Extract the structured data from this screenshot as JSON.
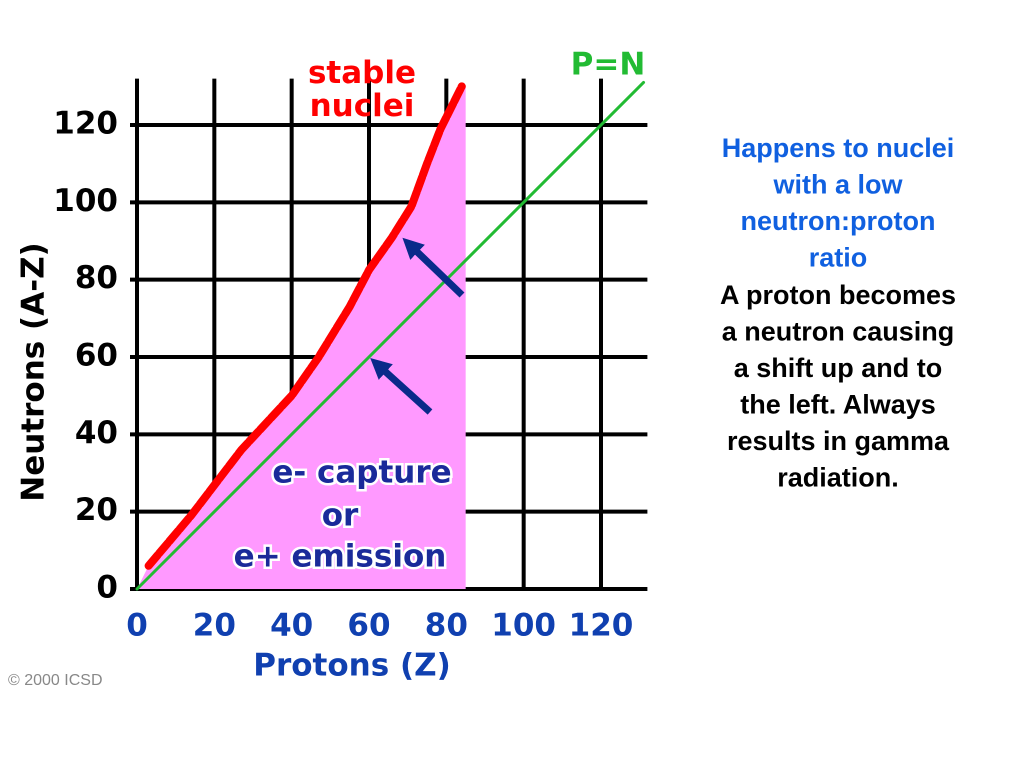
{
  "chart_data": {
    "type": "line",
    "xlabel": "Protons  (Z)",
    "ylabel": "Neutrons  (A-Z)",
    "xlim": [
      0,
      132
    ],
    "ylim": [
      0,
      132
    ],
    "xticks": [
      0,
      20,
      40,
      60,
      80,
      100,
      120
    ],
    "yticks": [
      0,
      20,
      40,
      60,
      80,
      100,
      120
    ],
    "grid": true,
    "series": [
      {
        "name": "stable nuclei",
        "color": "#ff0000",
        "x": [
          3,
          14,
          27,
          40,
          47,
          55,
          60,
          66,
          71,
          75,
          78.5,
          84
        ],
        "values": [
          6,
          19,
          36,
          50,
          60,
          73,
          82.5,
          91,
          99,
          110,
          119,
          130
        ]
      },
      {
        "name": "P=N",
        "color": "#22bb33",
        "x": [
          0,
          131
        ],
        "values": [
          0,
          131
        ]
      }
    ],
    "shaded_region": {
      "color": "#ff99ff",
      "x": [
        0,
        3,
        14,
        27,
        40,
        47,
        55,
        60,
        66,
        71,
        75,
        78.5,
        84,
        85,
        85
      ],
      "values": [
        0,
        6,
        19,
        36,
        50,
        60,
        73,
        82.5,
        91,
        99,
        110,
        119,
        130,
        130,
        0
      ]
    },
    "annotations": [
      "e- capture",
      "or",
      "e+ emission"
    ],
    "copyright": "© 2000 ICSD"
  },
  "note": {
    "title_lines": [
      "Happens to nuclei",
      "with a low",
      "neutron:proton",
      "ratio"
    ],
    "body_lines": [
      "A proton becomes",
      "a neutron causing",
      "a shift up and to",
      "the left.  Always",
      "results in gamma",
      "radiation."
    ]
  }
}
